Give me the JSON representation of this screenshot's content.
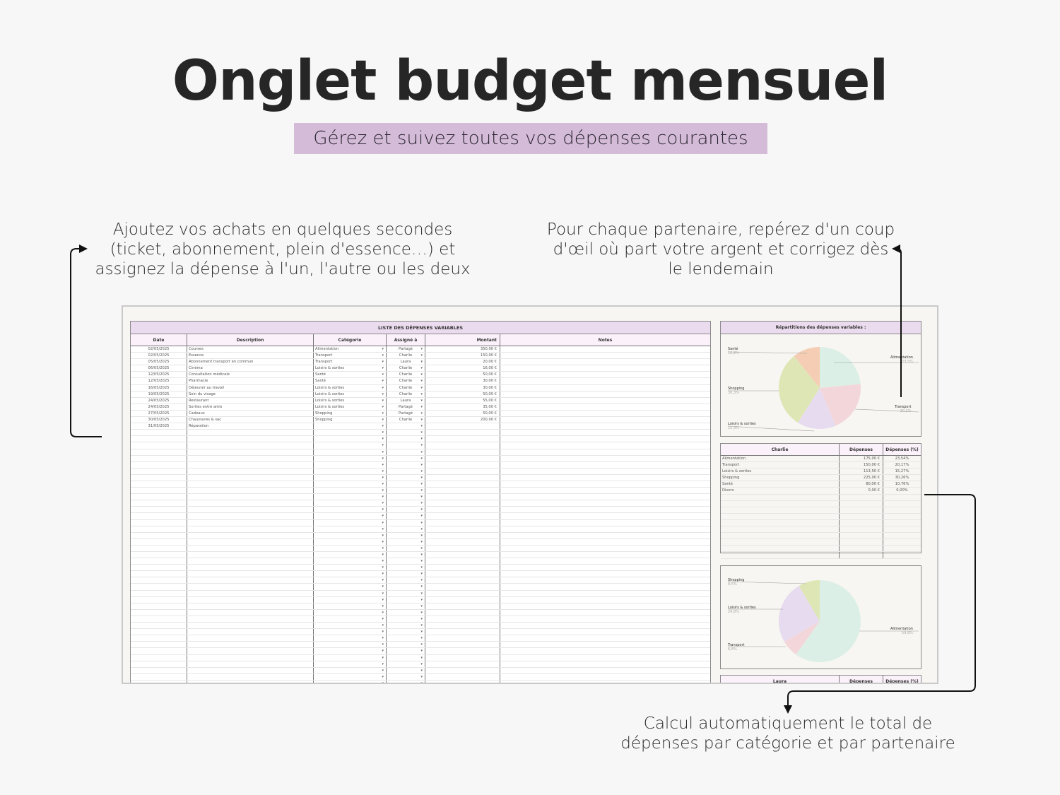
{
  "header": {
    "title": "Onglet budget mensuel",
    "subtitle": "Gérez et suivez toutes vos dépenses courantes"
  },
  "annotations": {
    "left": "Ajoutez vos achats en quelques secondes (ticket, abonnement, plein d'essence…) et assignez la dépense à l'un, l'autre ou les deux",
    "right": "Pour chaque partenaire, repérez d'un coup d'œil où part votre argent et corrigez dès le lendemain",
    "bottom": "Calcul automatiquement le total de dépenses par catégorie et par partenaire"
  },
  "expenses": {
    "title": "LISTE DES DÉPENSES VARIABLES",
    "columns": [
      "Date",
      "Description",
      "Catégorie",
      "Assigné à",
      "Montant",
      "Notes"
    ],
    "rows": [
      {
        "date": "02/05/2025",
        "description": "Courses",
        "category": "Alimentation",
        "assigned": "Partagé",
        "amount": "350,00 €",
        "notes": ""
      },
      {
        "date": "02/05/2025",
        "description": "Essence",
        "category": "Transport",
        "assigned": "Charlie",
        "amount": "150,00 €",
        "notes": ""
      },
      {
        "date": "05/05/2025",
        "description": "Abonnement transport en commun",
        "category": "Transport",
        "assigned": "Laura",
        "amount": "20,00 €",
        "notes": ""
      },
      {
        "date": "06/05/2025",
        "description": "Cinéma",
        "category": "Loisirs & sorties",
        "assigned": "Charlie",
        "amount": "16,00 €",
        "notes": ""
      },
      {
        "date": "12/05/2025",
        "description": "Consultation médicale",
        "category": "Santé",
        "assigned": "Charlie",
        "amount": "50,00 €",
        "notes": ""
      },
      {
        "date": "12/05/2025",
        "description": "Pharmacie",
        "category": "Santé",
        "assigned": "Charlie",
        "amount": "30,00 €",
        "notes": ""
      },
      {
        "date": "16/05/2025",
        "description": "Déjeuner au travail",
        "category": "Loisirs & sorties",
        "assigned": "Charlie",
        "amount": "30,00 €",
        "notes": ""
      },
      {
        "date": "19/05/2025",
        "description": "Soin du visage",
        "category": "Loisirs & sorties",
        "assigned": "Charlie",
        "amount": "50,00 €",
        "notes": ""
      },
      {
        "date": "24/05/2025",
        "description": "Restaurant",
        "category": "Loisirs & sorties",
        "assigned": "Laura",
        "amount": "55,00 €",
        "notes": ""
      },
      {
        "date": "24/05/2025",
        "description": "Sorties entre amis",
        "category": "Loisirs & sorties",
        "assigned": "Partagé",
        "amount": "35,00 €",
        "notes": ""
      },
      {
        "date": "27/05/2025",
        "description": "Cadeaux",
        "category": "Shopping",
        "assigned": "Partagé",
        "amount": "50,00 €",
        "notes": ""
      },
      {
        "date": "30/05/2025",
        "description": "Chaussures & sac",
        "category": "Shopping",
        "assigned": "Charlie",
        "amount": "200,00 €",
        "notes": ""
      },
      {
        "date": "31/05/2025",
        "description": "Réparation",
        "category": "",
        "assigned": "",
        "amount": "",
        "notes": ""
      }
    ],
    "empty_rows": 40,
    "dropdown_glyph": "▾"
  },
  "pie_all": {
    "title": "Répartitions des dépenses variables :",
    "slices": [
      {
        "label": "Alimentation",
        "pct": "23,5%",
        "value": 23.5,
        "color": "#dcefe6"
      },
      {
        "label": "Transport",
        "pct": "20,2%",
        "value": 20.2,
        "color": "#f3d6da"
      },
      {
        "label": "Loisirs & sorties",
        "pct": "15,3%",
        "value": 15.3,
        "color": "#e7dbef"
      },
      {
        "label": "Shopping",
        "pct": "30,3%",
        "value": 30.3,
        "color": "#dfe6b6"
      },
      {
        "label": "Santé",
        "pct": "10,8%",
        "value": 10.8,
        "color": "#f5cdb4"
      }
    ]
  },
  "charlie_table": {
    "header": [
      "Charlie",
      "Dépenses",
      "Dépenses (%)"
    ],
    "rows": [
      {
        "category": "Alimentation",
        "amount": "175,00 €",
        "pct": "23,54%"
      },
      {
        "category": "Transport",
        "amount": "150,00 €",
        "pct": "20,17%"
      },
      {
        "category": "Loisirs & sorties",
        "amount": "113,50 €",
        "pct": "15,27%"
      },
      {
        "category": "Shopping",
        "amount": "225,00 €",
        "pct": "30,26%"
      },
      {
        "category": "Santé",
        "amount": "80,00 €",
        "pct": "10,76%"
      },
      {
        "category": "Divers",
        "amount": "0,00 €",
        "pct": "0,00%"
      }
    ],
    "empty_rows": 10
  },
  "pie_laura": {
    "slices": [
      {
        "label": "Alimentation",
        "pct": "59,8%",
        "value": 59.8,
        "color": "#dcefe6"
      },
      {
        "label": "Transport",
        "pct": "6,8%",
        "value": 6.8,
        "color": "#f3d6da"
      },
      {
        "label": "Loisirs & sorties",
        "pct": "24,8%",
        "value": 24.8,
        "color": "#e7dbef"
      },
      {
        "label": "Shopping",
        "pct": "8,5%",
        "value": 8.5,
        "color": "#dfe6b6"
      }
    ]
  },
  "laura_table": {
    "header": [
      "Laura",
      "Dépenses",
      "Dépenses (%)"
    ]
  },
  "chart_data": [
    {
      "type": "pie",
      "title": "Répartitions des dépenses variables :",
      "categories": [
        "Alimentation",
        "Transport",
        "Loisirs & sorties",
        "Shopping",
        "Santé"
      ],
      "values": [
        23.5,
        20.2,
        15.3,
        30.3,
        10.8
      ]
    },
    {
      "type": "pie",
      "title": "Laura",
      "categories": [
        "Alimentation",
        "Transport",
        "Loisirs & sorties",
        "Shopping"
      ],
      "values": [
        59.8,
        6.8,
        24.8,
        8.5
      ]
    }
  ]
}
